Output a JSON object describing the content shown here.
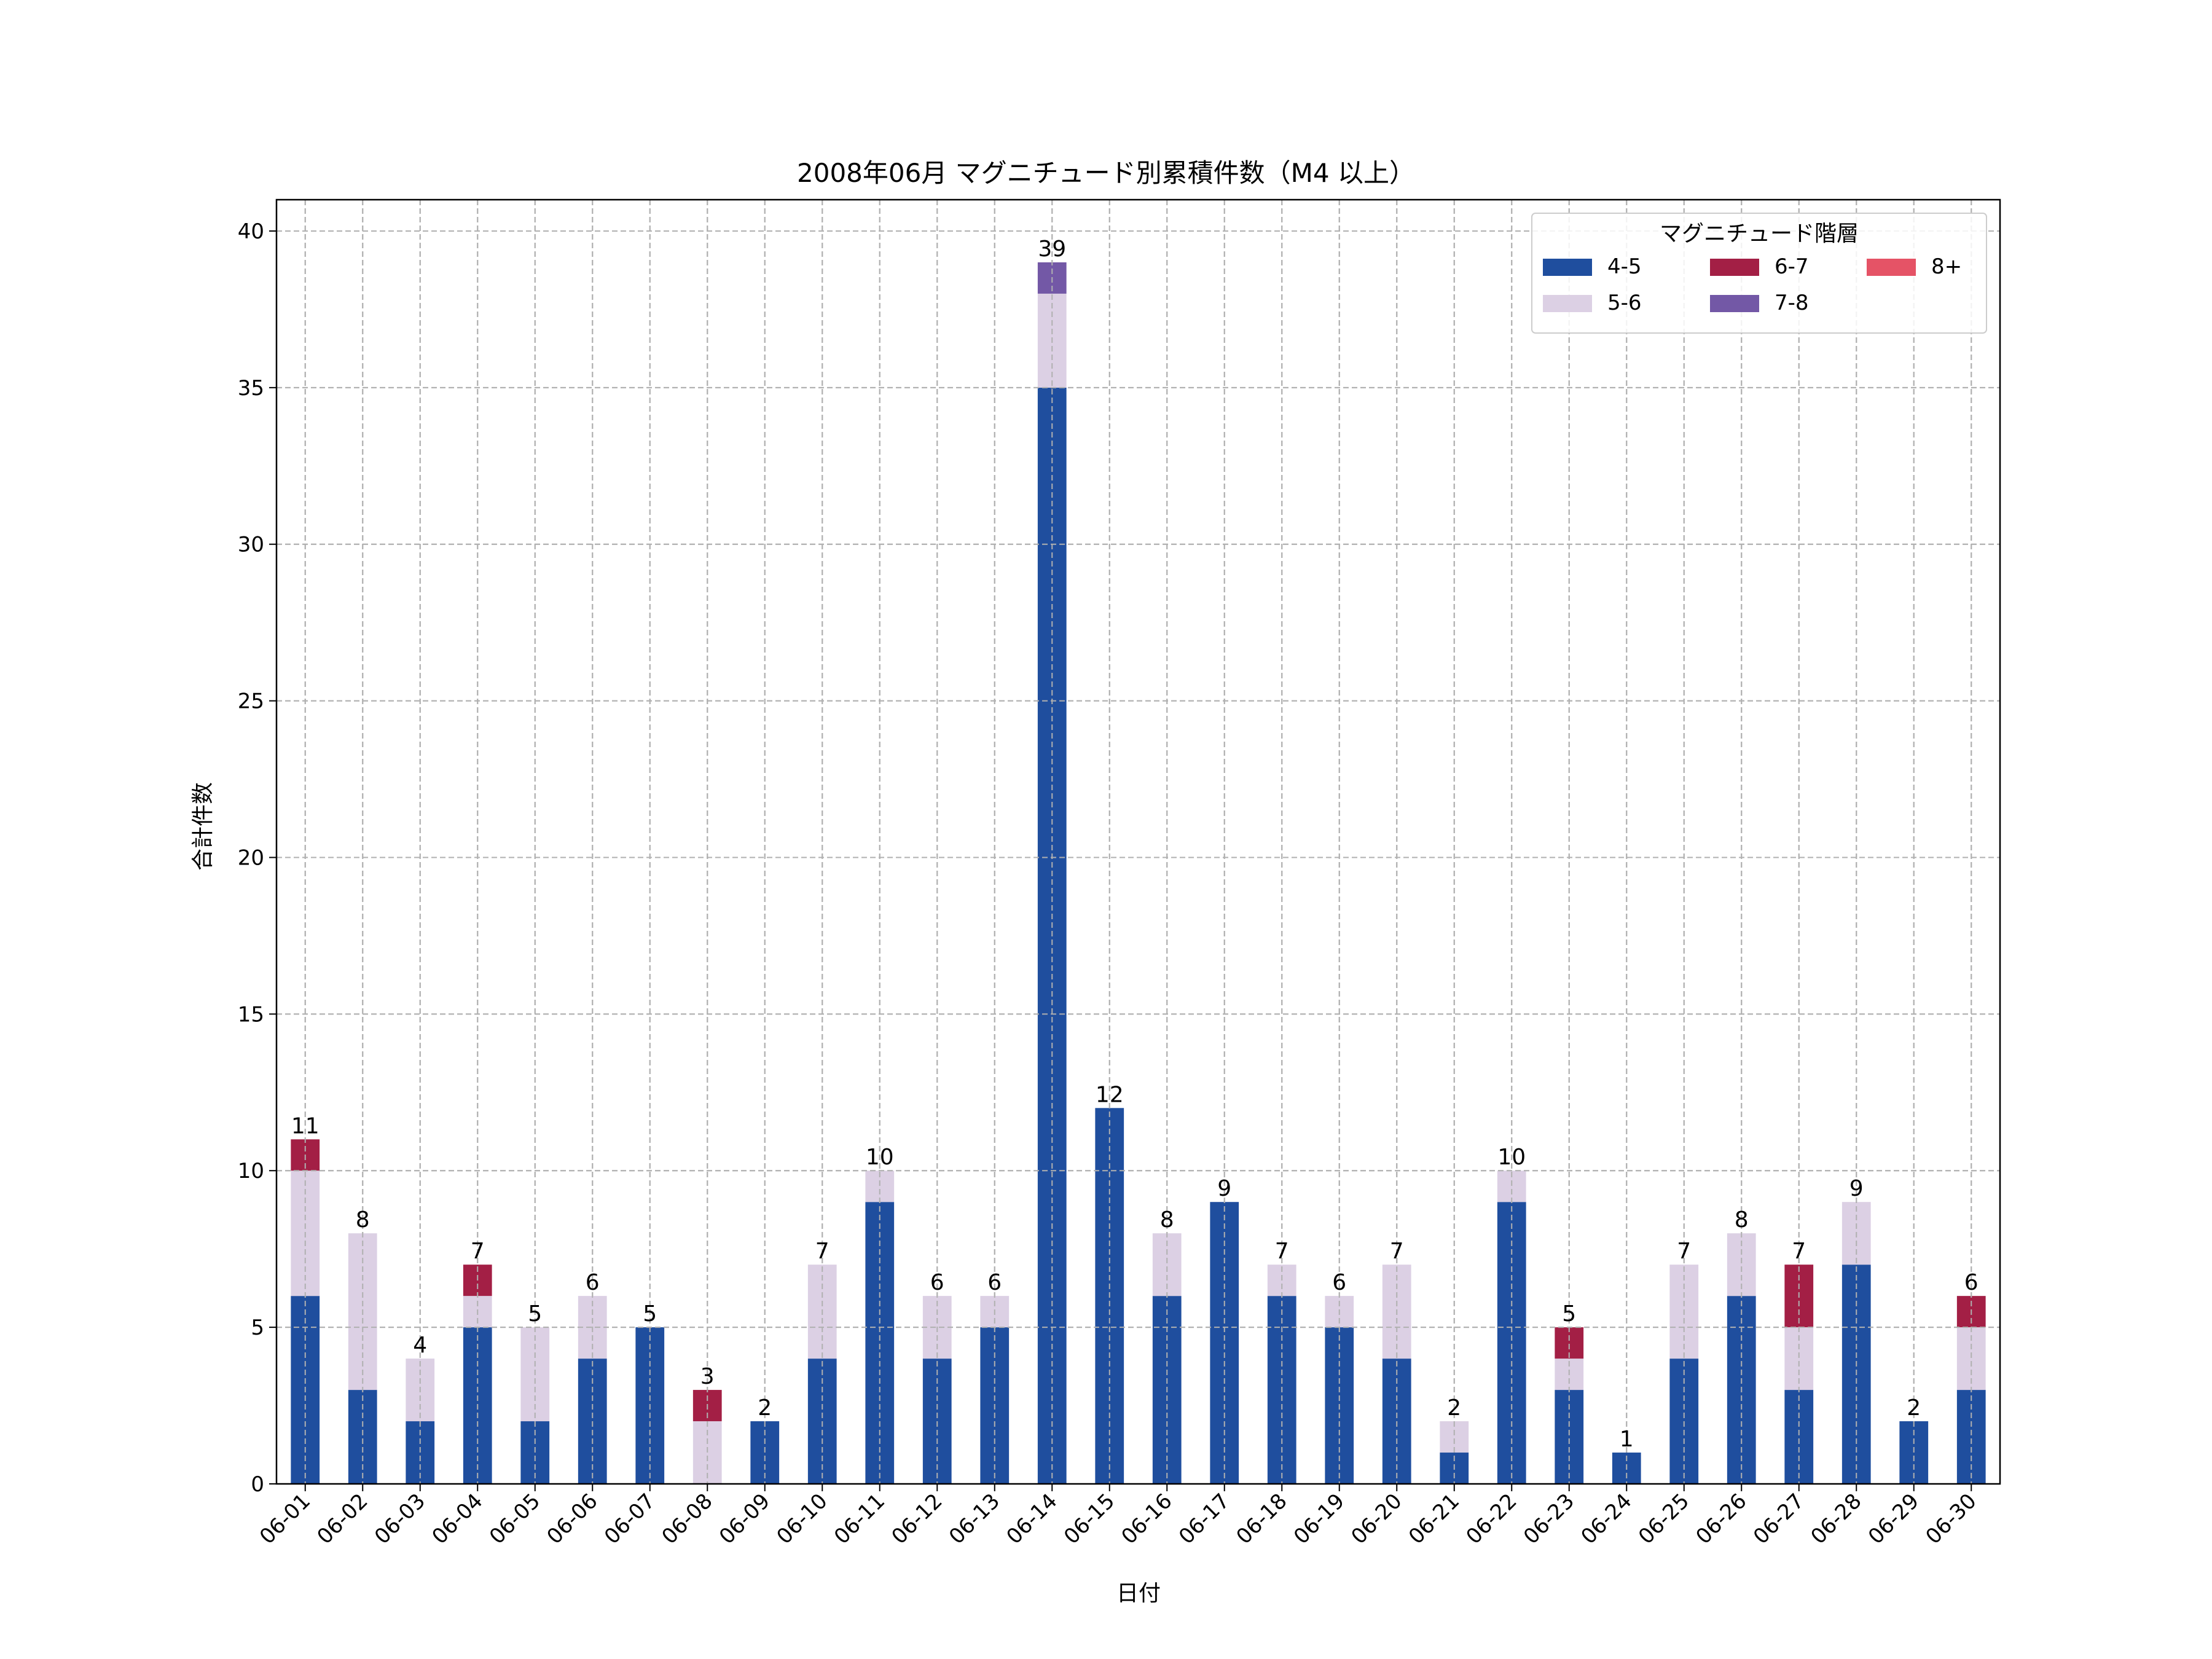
{
  "chart_data": {
    "type": "bar",
    "stacked": true,
    "title": "2008年06月 マグニチュード別累積件数（M4 以上）",
    "xlabel": "日付",
    "ylabel": "合計件数",
    "ylim": [
      0,
      41
    ],
    "yticks": [
      0,
      5,
      10,
      15,
      20,
      25,
      30,
      35,
      40
    ],
    "grid": true,
    "legend": {
      "title": "マグニチュード階層",
      "placement": "top-right"
    },
    "categories": [
      "06-01",
      "06-02",
      "06-03",
      "06-04",
      "06-05",
      "06-06",
      "06-07",
      "06-08",
      "06-09",
      "06-10",
      "06-11",
      "06-12",
      "06-13",
      "06-14",
      "06-15",
      "06-16",
      "06-17",
      "06-18",
      "06-19",
      "06-20",
      "06-21",
      "06-22",
      "06-23",
      "06-24",
      "06-25",
      "06-26",
      "06-27",
      "06-28",
      "06-29",
      "06-30"
    ],
    "series": [
      {
        "name": "4-5",
        "color": "#1f4e9e",
        "values": [
          6,
          3,
          2,
          5,
          2,
          4,
          5,
          0,
          2,
          4,
          9,
          4,
          5,
          35,
          12,
          6,
          9,
          6,
          5,
          4,
          1,
          9,
          3,
          1,
          4,
          6,
          3,
          7,
          2,
          3
        ]
      },
      {
        "name": "5-6",
        "color": "#dcd0e4",
        "values": [
          4,
          5,
          2,
          1,
          3,
          2,
          0,
          2,
          0,
          3,
          1,
          2,
          1,
          3,
          0,
          2,
          0,
          1,
          1,
          3,
          1,
          1,
          1,
          0,
          3,
          2,
          2,
          2,
          0,
          2
        ]
      },
      {
        "name": "6-7",
        "color": "#a31f45",
        "values": [
          1,
          0,
          0,
          1,
          0,
          0,
          0,
          1,
          0,
          0,
          0,
          0,
          0,
          0,
          0,
          0,
          0,
          0,
          0,
          0,
          0,
          0,
          1,
          0,
          0,
          0,
          2,
          0,
          0,
          1
        ]
      },
      {
        "name": "7-8",
        "color": "#7358a6",
        "values": [
          0,
          0,
          0,
          0,
          0,
          0,
          0,
          0,
          0,
          0,
          0,
          0,
          0,
          1,
          0,
          0,
          0,
          0,
          0,
          0,
          0,
          0,
          0,
          0,
          0,
          0,
          0,
          0,
          0,
          0
        ]
      },
      {
        "name": "8+",
        "color": "#e55366",
        "values": [
          0,
          0,
          0,
          0,
          0,
          0,
          0,
          0,
          0,
          0,
          0,
          0,
          0,
          0,
          0,
          0,
          0,
          0,
          0,
          0,
          0,
          0,
          0,
          0,
          0,
          0,
          0,
          0,
          0,
          0
        ]
      }
    ],
    "totals": [
      11,
      8,
      4,
      7,
      5,
      6,
      5,
      3,
      2,
      7,
      10,
      6,
      6,
      39,
      12,
      8,
      9,
      7,
      6,
      7,
      2,
      10,
      5,
      1,
      7,
      8,
      7,
      9,
      2,
      6
    ]
  }
}
